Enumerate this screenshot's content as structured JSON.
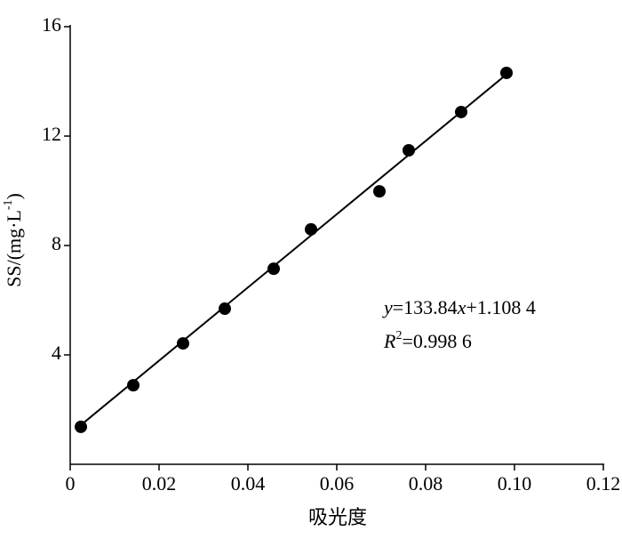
{
  "chart_data": {
    "type": "scatter",
    "x_label": "吸光度",
    "y_label": [
      {
        "text": "SS/(mg·L"
      },
      {
        "text": "-1",
        "style": "superscript"
      },
      {
        "text": ")"
      }
    ],
    "series": [
      {
        "color": "#000000",
        "x": [
          0.0024,
          0.0142,
          0.0254,
          0.0348,
          0.0458,
          0.0542,
          0.0696,
          0.0762,
          0.088,
          0.0982
        ],
        "values": [
          1.37,
          2.89,
          4.42,
          5.69,
          7.15,
          8.59,
          9.98,
          11.48,
          12.88,
          14.31
        ]
      }
    ],
    "fit_line": {
      "color": "#000000",
      "x": [
        0.002,
        0.098
      ],
      "values": [
        1.38,
        14.23
      ]
    },
    "annotations": [
      [
        {
          "text": "y",
          "style": "italic"
        },
        {
          "text": "=133.84"
        },
        {
          "text": "x",
          "style": "italic"
        },
        {
          "text": "+1.108 4"
        }
      ],
      [
        {
          "text": "R",
          "style": "italic"
        },
        {
          "text": "2",
          "style": "superscript"
        },
        {
          "text": "=0.998 6"
        }
      ]
    ],
    "xlim": [
      0,
      0.12
    ],
    "xticks": [
      0,
      0.02,
      0.04,
      0.06,
      0.08,
      {
        "value": 0.1,
        "label": "0.10"
      },
      0.12
    ],
    "ylim": [
      0,
      16
    ],
    "yticks": [
      4,
      8,
      12,
      16
    ]
  }
}
